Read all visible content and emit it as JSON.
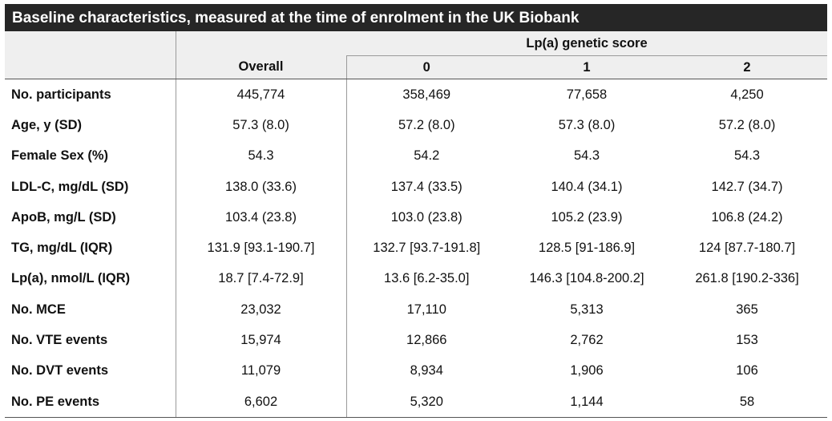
{
  "title": "Baseline characteristics, measured at the time of enrolment in the UK Biobank",
  "group_header": "Lp(a) genetic score",
  "columns": {
    "overall": "Overall",
    "g0": "0",
    "g1": "1",
    "g2": "2"
  },
  "rows": [
    {
      "label": "No. participants",
      "overall": "445,774",
      "g0": "358,469",
      "g1": "77,658",
      "g2": "4,250"
    },
    {
      "label": "Age, y (SD)",
      "overall": "57.3 (8.0)",
      "g0": "57.2 (8.0)",
      "g1": "57.3 (8.0)",
      "g2": "57.2 (8.0)"
    },
    {
      "label": "Female Sex (%)",
      "overall": "54.3",
      "g0": "54.2",
      "g1": "54.3",
      "g2": "54.3"
    },
    {
      "label": "LDL-C, mg/dL (SD)",
      "overall": "138.0 (33.6)",
      "g0": "137.4 (33.5)",
      "g1": "140.4 (34.1)",
      "g2": "142.7 (34.7)"
    },
    {
      "label": "ApoB, mg/L (SD)",
      "overall": "103.4 (23.8)",
      "g0": "103.0 (23.8)",
      "g1": "105.2 (23.9)",
      "g2": "106.8 (24.2)"
    },
    {
      "label": "TG, mg/dL (IQR)",
      "overall": "131.9 [93.1-190.7]",
      "g0": "132.7 [93.7-191.8]",
      "g1": "128.5 [91-186.9]",
      "g2": "124 [87.7-180.7]"
    },
    {
      "label": "Lp(a), nmol/L (IQR)",
      "overall": "18.7 [7.4-72.9]",
      "g0": "13.6 [6.2-35.0]",
      "g1": "146.3 [104.8-200.2]",
      "g2": "261.8 [190.2-336]"
    },
    {
      "label": "No. MCE",
      "overall": "23,032",
      "g0": "17,110",
      "g1": "5,313",
      "g2": "365"
    },
    {
      "label": "No. VTE events",
      "overall": "15,974",
      "g0": "12,866",
      "g1": "2,762",
      "g2": "153"
    },
    {
      "label": "No. DVT events",
      "overall": "11,079",
      "g0": "8,934",
      "g1": "1,906",
      "g2": "106"
    },
    {
      "label": "No. PE events",
      "overall": "6,602",
      "g0": "5,320",
      "g1": "1,144",
      "g2": "58"
    }
  ]
}
